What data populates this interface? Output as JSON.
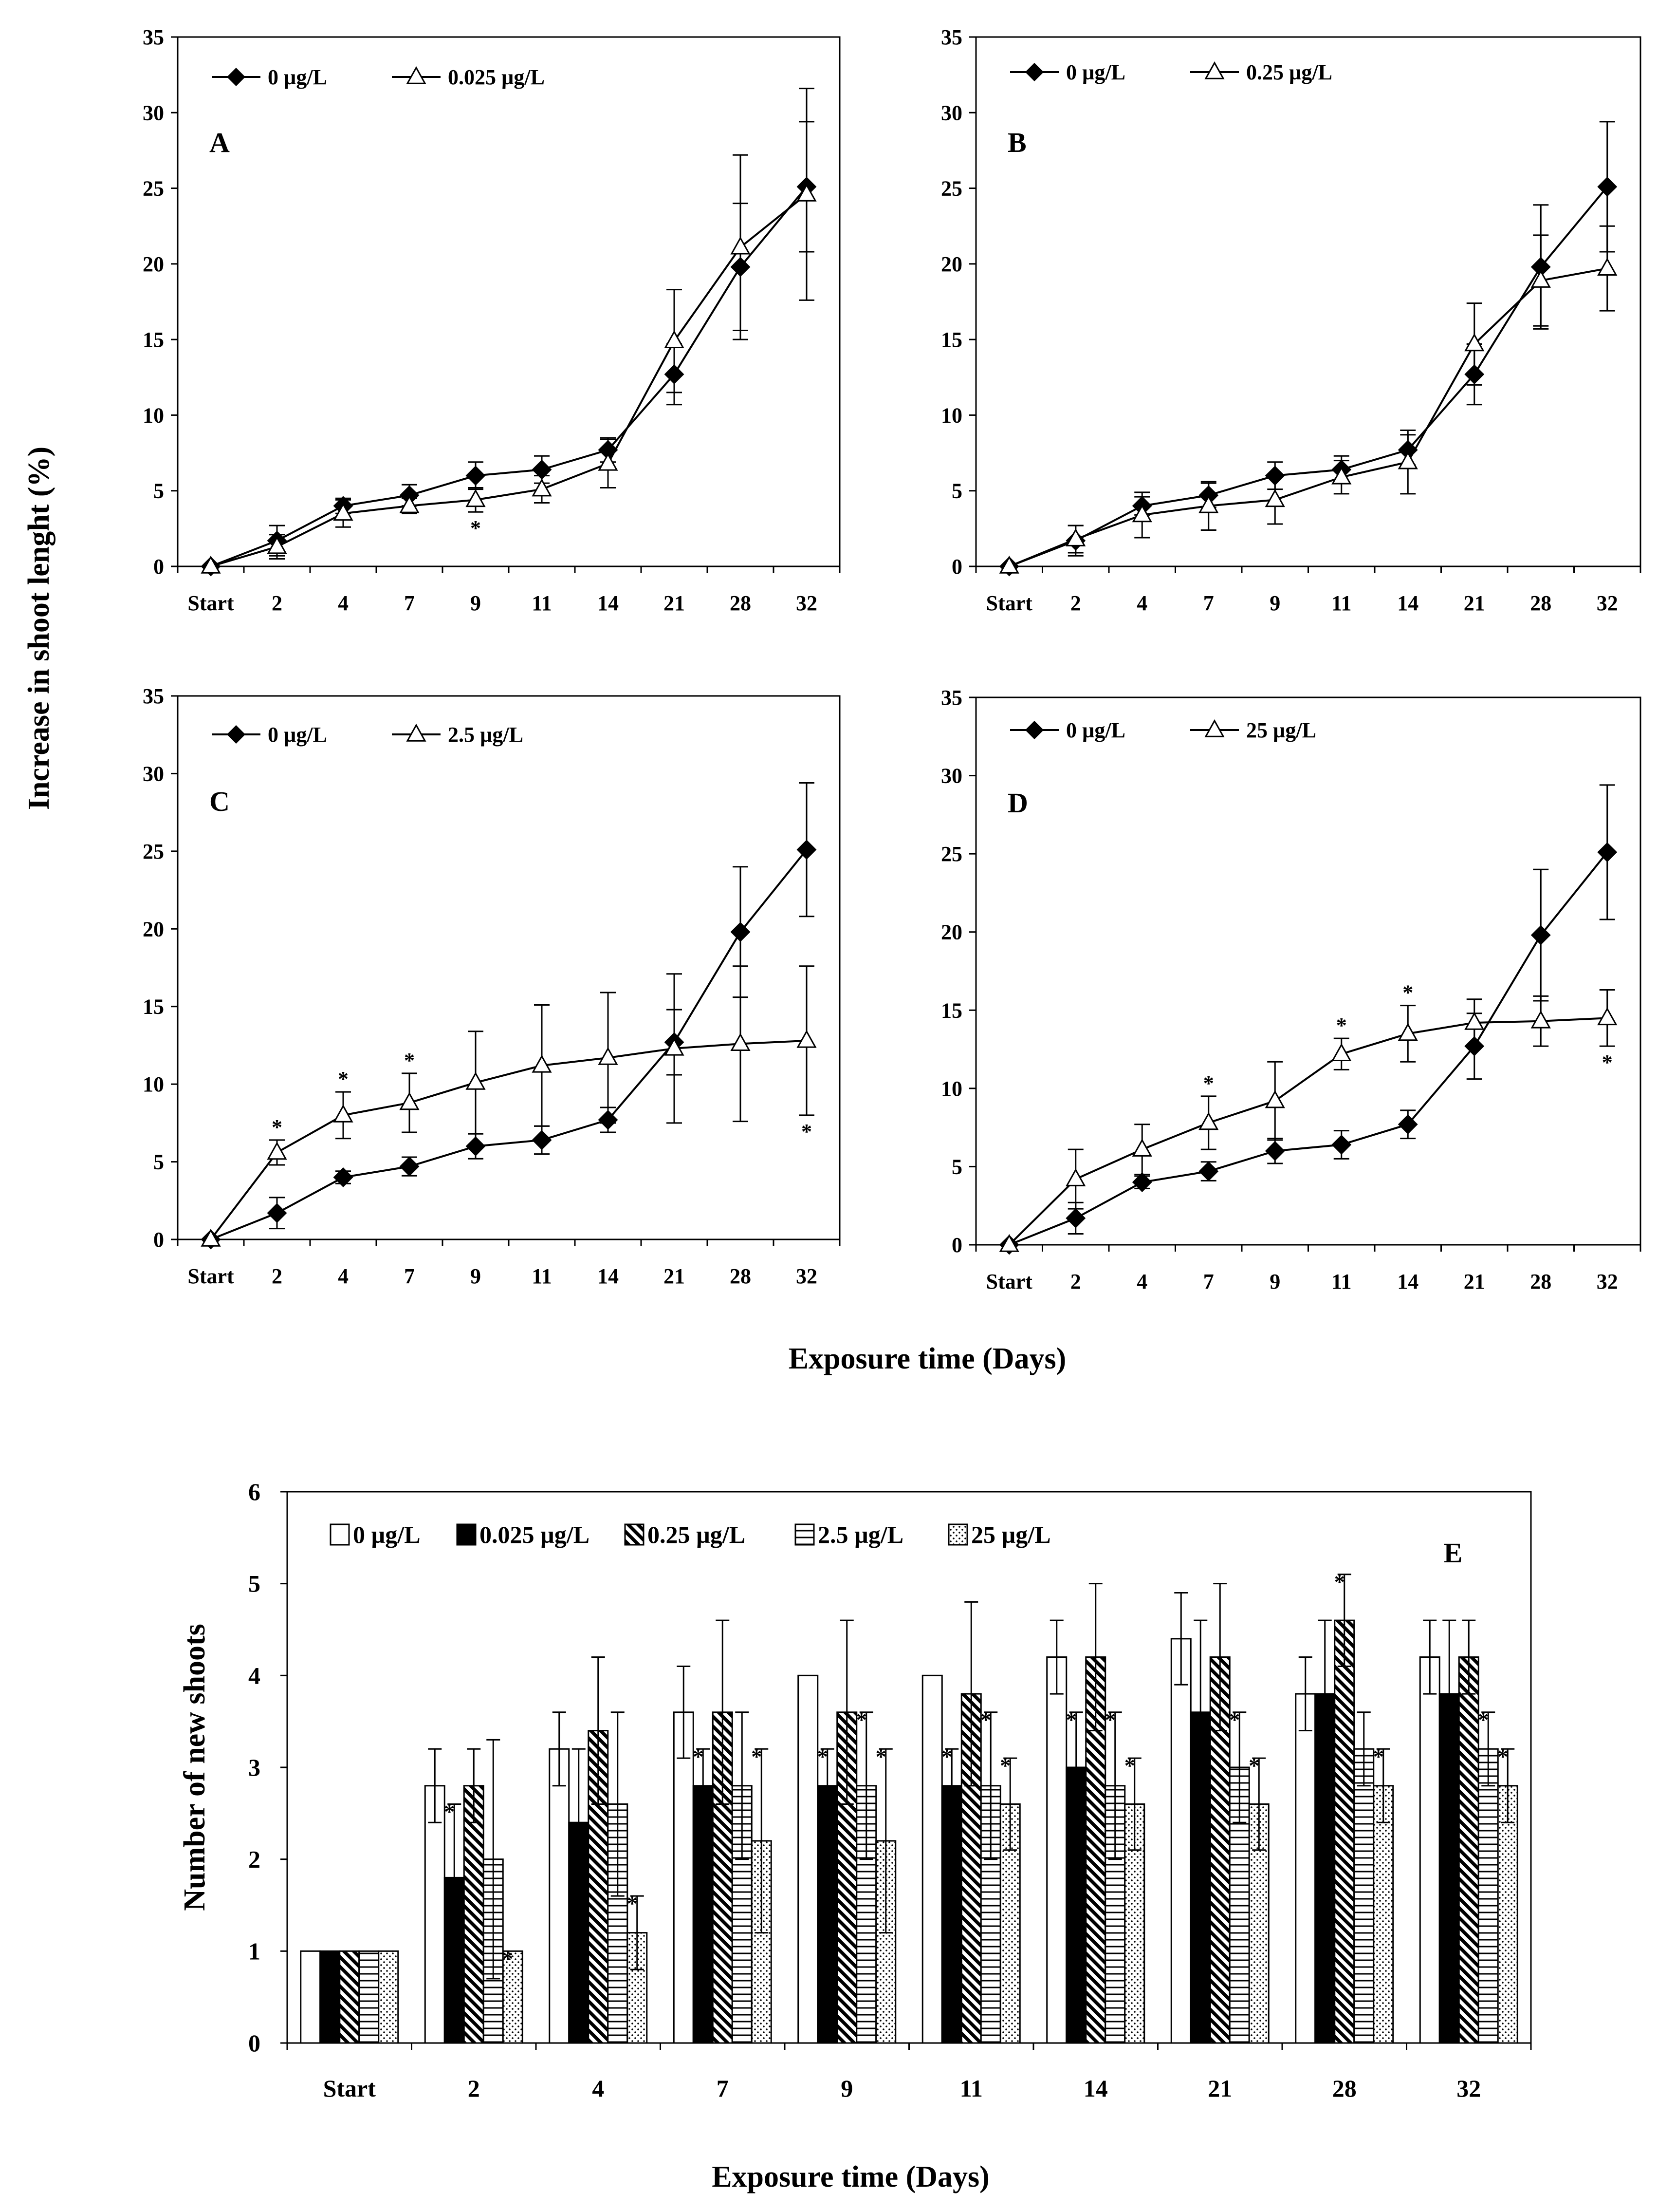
{
  "figure": {
    "ylabel_top": "Increase in shoot lenght (%)",
    "xlabel_top": "Exposure time (Days)"
  },
  "chart_data": [
    {
      "type": "line",
      "panel_label": "A",
      "categories": [
        "Start",
        "2",
        "4",
        "7",
        "9",
        "11",
        "14",
        "21",
        "28",
        "32"
      ],
      "ylim": [
        0,
        35
      ],
      "yticks": [
        0,
        5,
        10,
        15,
        20,
        25,
        30,
        35
      ],
      "legend_position": "top-left",
      "series": [
        {
          "name": "0 µg/L",
          "marker": "diamond",
          "values": [
            0,
            1.7,
            4.0,
            4.7,
            6.0,
            6.4,
            7.7,
            12.7,
            19.8,
            25.1
          ],
          "errors": [
            0,
            1.0,
            0.5,
            0.7,
            0.9,
            0.9,
            0.8,
            2.0,
            4.2,
            4.3
          ]
        },
        {
          "name": "0.025 µg/L",
          "marker": "triangle",
          "values": [
            0,
            1.3,
            3.5,
            4.0,
            4.4,
            5.1,
            6.8,
            14.9,
            21.1,
            24.6
          ],
          "errors": [
            0,
            0.8,
            0.9,
            0.5,
            0.8,
            0.9,
            1.6,
            3.4,
            6.1,
            7.0
          ]
        }
      ],
      "annotations": [
        {
          "text": "*",
          "category": "9",
          "series": 1,
          "position": "below"
        }
      ]
    },
    {
      "type": "line",
      "panel_label": "B",
      "categories": [
        "Start",
        "2",
        "4",
        "7",
        "9",
        "11",
        "14",
        "21",
        "28",
        "32"
      ],
      "ylim": [
        0,
        35
      ],
      "yticks": [
        0,
        5,
        10,
        15,
        20,
        25,
        30,
        35
      ],
      "legend_position": "top-left",
      "series": [
        {
          "name": "0 µg/L",
          "marker": "diamond",
          "values": [
            0,
            1.7,
            4.0,
            4.7,
            6.0,
            6.4,
            7.7,
            12.7,
            19.8,
            25.1
          ],
          "errors": [
            0,
            1.0,
            0.6,
            0.8,
            0.9,
            0.9,
            1.0,
            2.0,
            4.1,
            4.3
          ]
        },
        {
          "name": "0.25 µg/L",
          "marker": "triangle",
          "values": [
            0,
            1.8,
            3.4,
            4.0,
            4.4,
            5.9,
            6.9,
            14.7,
            18.9,
            19.7
          ],
          "errors": [
            0,
            0.9,
            1.5,
            1.6,
            1.6,
            1.1,
            2.1,
            2.7,
            3.0,
            2.8
          ]
        }
      ],
      "annotations": []
    },
    {
      "type": "line",
      "panel_label": "C",
      "categories": [
        "Start",
        "2",
        "4",
        "7",
        "9",
        "11",
        "14",
        "21",
        "28",
        "32"
      ],
      "ylim": [
        0,
        35
      ],
      "yticks": [
        0,
        5,
        10,
        15,
        20,
        25,
        30,
        35
      ],
      "legend_position": "top-left",
      "series": [
        {
          "name": "0 µg/L",
          "marker": "diamond",
          "values": [
            0,
            1.7,
            4.0,
            4.7,
            6.0,
            6.4,
            7.7,
            12.7,
            19.8,
            25.1
          ],
          "errors": [
            0,
            1.0,
            0.4,
            0.6,
            0.8,
            0.9,
            0.8,
            2.1,
            4.2,
            4.3
          ]
        },
        {
          "name": "2.5 µg/L",
          "marker": "triangle",
          "values": [
            0,
            5.6,
            8.0,
            8.8,
            10.1,
            11.2,
            11.7,
            12.3,
            12.6,
            12.8
          ],
          "errors": [
            0,
            0.8,
            1.5,
            1.9,
            3.3,
            3.9,
            4.2,
            4.8,
            5.0,
            4.8
          ]
        }
      ],
      "annotations": [
        {
          "text": "*",
          "category": "2",
          "series": 1,
          "position": "above"
        },
        {
          "text": "*",
          "category": "4",
          "series": 1,
          "position": "above"
        },
        {
          "text": "*",
          "category": "7",
          "series": 1,
          "position": "above"
        },
        {
          "text": "*",
          "category": "32",
          "series": 1,
          "position": "below"
        }
      ]
    },
    {
      "type": "line",
      "panel_label": "D",
      "categories": [
        "Start",
        "2",
        "4",
        "7",
        "9",
        "11",
        "14",
        "21",
        "28",
        "32"
      ],
      "ylim": [
        0,
        35
      ],
      "yticks": [
        0,
        5,
        10,
        15,
        20,
        25,
        30,
        35
      ],
      "legend_position": "top-left",
      "series": [
        {
          "name": "0 µg/L",
          "marker": "diamond",
          "values": [
            0,
            1.7,
            4.0,
            4.7,
            6.0,
            6.4,
            7.7,
            12.7,
            19.8,
            25.1
          ],
          "errors": [
            0,
            1.0,
            0.4,
            0.6,
            0.8,
            0.9,
            0.9,
            2.1,
            4.2,
            4.3
          ]
        },
        {
          "name": "25 µg/L",
          "marker": "triangle",
          "values": [
            0,
            4.2,
            6.1,
            7.8,
            9.2,
            12.2,
            13.5,
            14.2,
            14.3,
            14.5
          ],
          "errors": [
            0,
            1.9,
            1.6,
            1.7,
            2.5,
            1.0,
            1.8,
            1.5,
            1.6,
            1.8
          ]
        }
      ],
      "annotations": [
        {
          "text": "*",
          "category": "7",
          "series": 1,
          "position": "above"
        },
        {
          "text": "*",
          "category": "11",
          "series": 1,
          "position": "above"
        },
        {
          "text": "*",
          "category": "14",
          "series": 1,
          "position": "above"
        },
        {
          "text": "*",
          "category": "32",
          "series": 1,
          "position": "below"
        }
      ]
    },
    {
      "type": "bar",
      "panel_label": "E",
      "title": "",
      "xlabel": "Exposure time (Days)",
      "ylabel": "Number of new shoots",
      "categories": [
        "Start",
        "2",
        "4",
        "7",
        "9",
        "11",
        "14",
        "21",
        "28",
        "32"
      ],
      "ylim": [
        0,
        6
      ],
      "yticks": [
        0,
        1,
        2,
        3,
        4,
        5,
        6
      ],
      "legend_position": "top",
      "series": [
        {
          "name": "0 µg/L",
          "pattern": "white",
          "values": [
            1,
            2.8,
            3.2,
            3.6,
            4.0,
            4.0,
            4.2,
            4.4,
            3.8,
            4.2
          ],
          "errors": [
            0,
            0.4,
            0.4,
            0.5,
            0,
            0,
            0.4,
            0.5,
            0.4,
            0.4
          ]
        },
        {
          "name": "0.025 µg/L",
          "pattern": "black",
          "values": [
            1,
            1.8,
            2.4,
            2.8,
            2.8,
            2.8,
            3.0,
            3.6,
            3.8,
            3.8
          ],
          "errors": [
            0,
            0.8,
            0.8,
            0.4,
            0.4,
            0.4,
            0.6,
            1.0,
            0.8,
            0.8
          ]
        },
        {
          "name": "0.25 µg/L",
          "pattern": "diagonal",
          "values": [
            1,
            2.8,
            3.4,
            3.6,
            3.6,
            3.8,
            4.2,
            4.2,
            4.6,
            4.2
          ],
          "errors": [
            0,
            0.4,
            0.8,
            1.0,
            1.0,
            1.0,
            0.8,
            0.8,
            0.5,
            0.4
          ]
        },
        {
          "name": "2.5 µg/L",
          "pattern": "horizontal",
          "values": [
            1,
            2.0,
            2.6,
            2.8,
            2.8,
            2.8,
            2.8,
            3.0,
            3.2,
            3.2
          ],
          "errors": [
            0,
            1.3,
            1.0,
            0.8,
            0.8,
            0.8,
            0.8,
            0.6,
            0.4,
            0.4
          ]
        },
        {
          "name": "25 µg/L",
          "pattern": "dots",
          "values": [
            1,
            1.0,
            1.2,
            2.2,
            2.2,
            2.6,
            2.6,
            2.6,
            2.8,
            2.8
          ],
          "errors": [
            0,
            0,
            0.4,
            1.0,
            1.0,
            0.5,
            0.5,
            0.5,
            0.4,
            0.4
          ]
        }
      ],
      "annotations": [
        {
          "text": "*",
          "category": "2",
          "series": 1
        },
        {
          "text": "*",
          "category": "2",
          "series": 4
        },
        {
          "text": "*",
          "category": "4",
          "series": 4
        },
        {
          "text": "*",
          "category": "7",
          "series": 1
        },
        {
          "text": "*",
          "category": "7",
          "series": 4
        },
        {
          "text": "*",
          "category": "9",
          "series": 1
        },
        {
          "text": "*",
          "category": "9",
          "series": 3
        },
        {
          "text": "*",
          "category": "9",
          "series": 4
        },
        {
          "text": "*",
          "category": "11",
          "series": 1
        },
        {
          "text": "*",
          "category": "11",
          "series": 3
        },
        {
          "text": "*",
          "category": "11",
          "series": 4
        },
        {
          "text": "*",
          "category": "14",
          "series": 1
        },
        {
          "text": "*",
          "category": "14",
          "series": 3
        },
        {
          "text": "*",
          "category": "14",
          "series": 4
        },
        {
          "text": "*",
          "category": "21",
          "series": 3
        },
        {
          "text": "*",
          "category": "21",
          "series": 4
        },
        {
          "text": "*",
          "category": "28",
          "series": 2
        },
        {
          "text": "*",
          "category": "28",
          "series": 4
        },
        {
          "text": "*",
          "category": "32",
          "series": 3
        },
        {
          "text": "*",
          "category": "32",
          "series": 4
        }
      ]
    }
  ]
}
